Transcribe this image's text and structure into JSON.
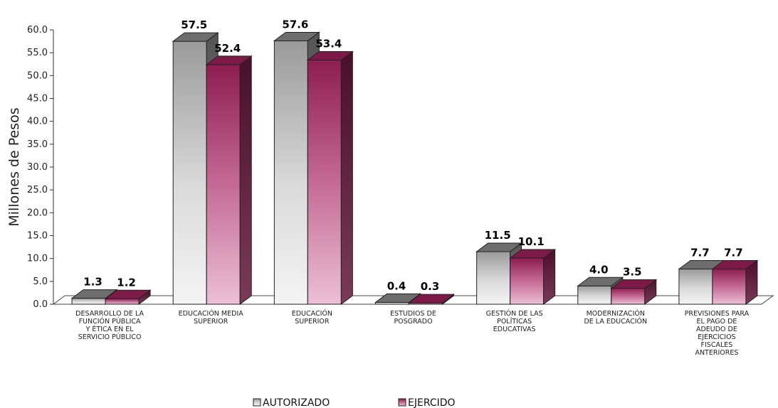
{
  "chart_data": {
    "type": "bar",
    "title": "",
    "xlabel": "",
    "ylabel": "Millones de Pesos",
    "ylim": [
      0,
      60
    ],
    "yticks": [
      "0.0",
      "5.0",
      "10.0",
      "15.0",
      "20.0",
      "25.0",
      "30.0",
      "35.0",
      "40.0",
      "45.0",
      "50.0",
      "55.0",
      "60.0"
    ],
    "grid": false,
    "legend": "bottom",
    "categories": [
      [
        "DESARROLLO DE LA",
        "FUNCIÓN PÚBLICA",
        "Y ÉTICA EN EL",
        "SERVICIO PÚBLICO"
      ],
      [
        "EDUCACIÓN MEDIA",
        "SUPERIOR"
      ],
      [
        "EDUCACIÓN",
        "SUPERIOR"
      ],
      [
        "ESTUDIOS DE",
        "POSGRADO"
      ],
      [
        "GESTIÓN DE LAS",
        "POLÍTICAS",
        "EDUCATIVAS"
      ],
      [
        "MODERNIZACIÓN",
        "DE LA EDUCACIÓN"
      ],
      [
        "PREVISIONES PARA",
        "EL PAGO DE",
        "ADEUDO DE",
        "EJERCICIOS",
        "FISCALES",
        "ANTERIORES"
      ]
    ],
    "series": [
      {
        "name": "AUTORIZADO",
        "values": [
          1.3,
          57.5,
          57.6,
          0.4,
          11.5,
          4.0,
          7.7
        ],
        "labels": [
          "1.3",
          "57.5",
          "57.6",
          "0.4",
          "11.5",
          "4.0",
          "7.7"
        ],
        "color": "#c8c8c8"
      },
      {
        "name": "EJERCIDO",
        "values": [
          1.2,
          52.4,
          53.4,
          0.3,
          10.1,
          3.5,
          7.7
        ],
        "labels": [
          "1.2",
          "52.4",
          "53.4",
          "0.3",
          "10.1",
          "3.5",
          "7.7"
        ],
        "color": "#9b2c5e"
      }
    ]
  }
}
